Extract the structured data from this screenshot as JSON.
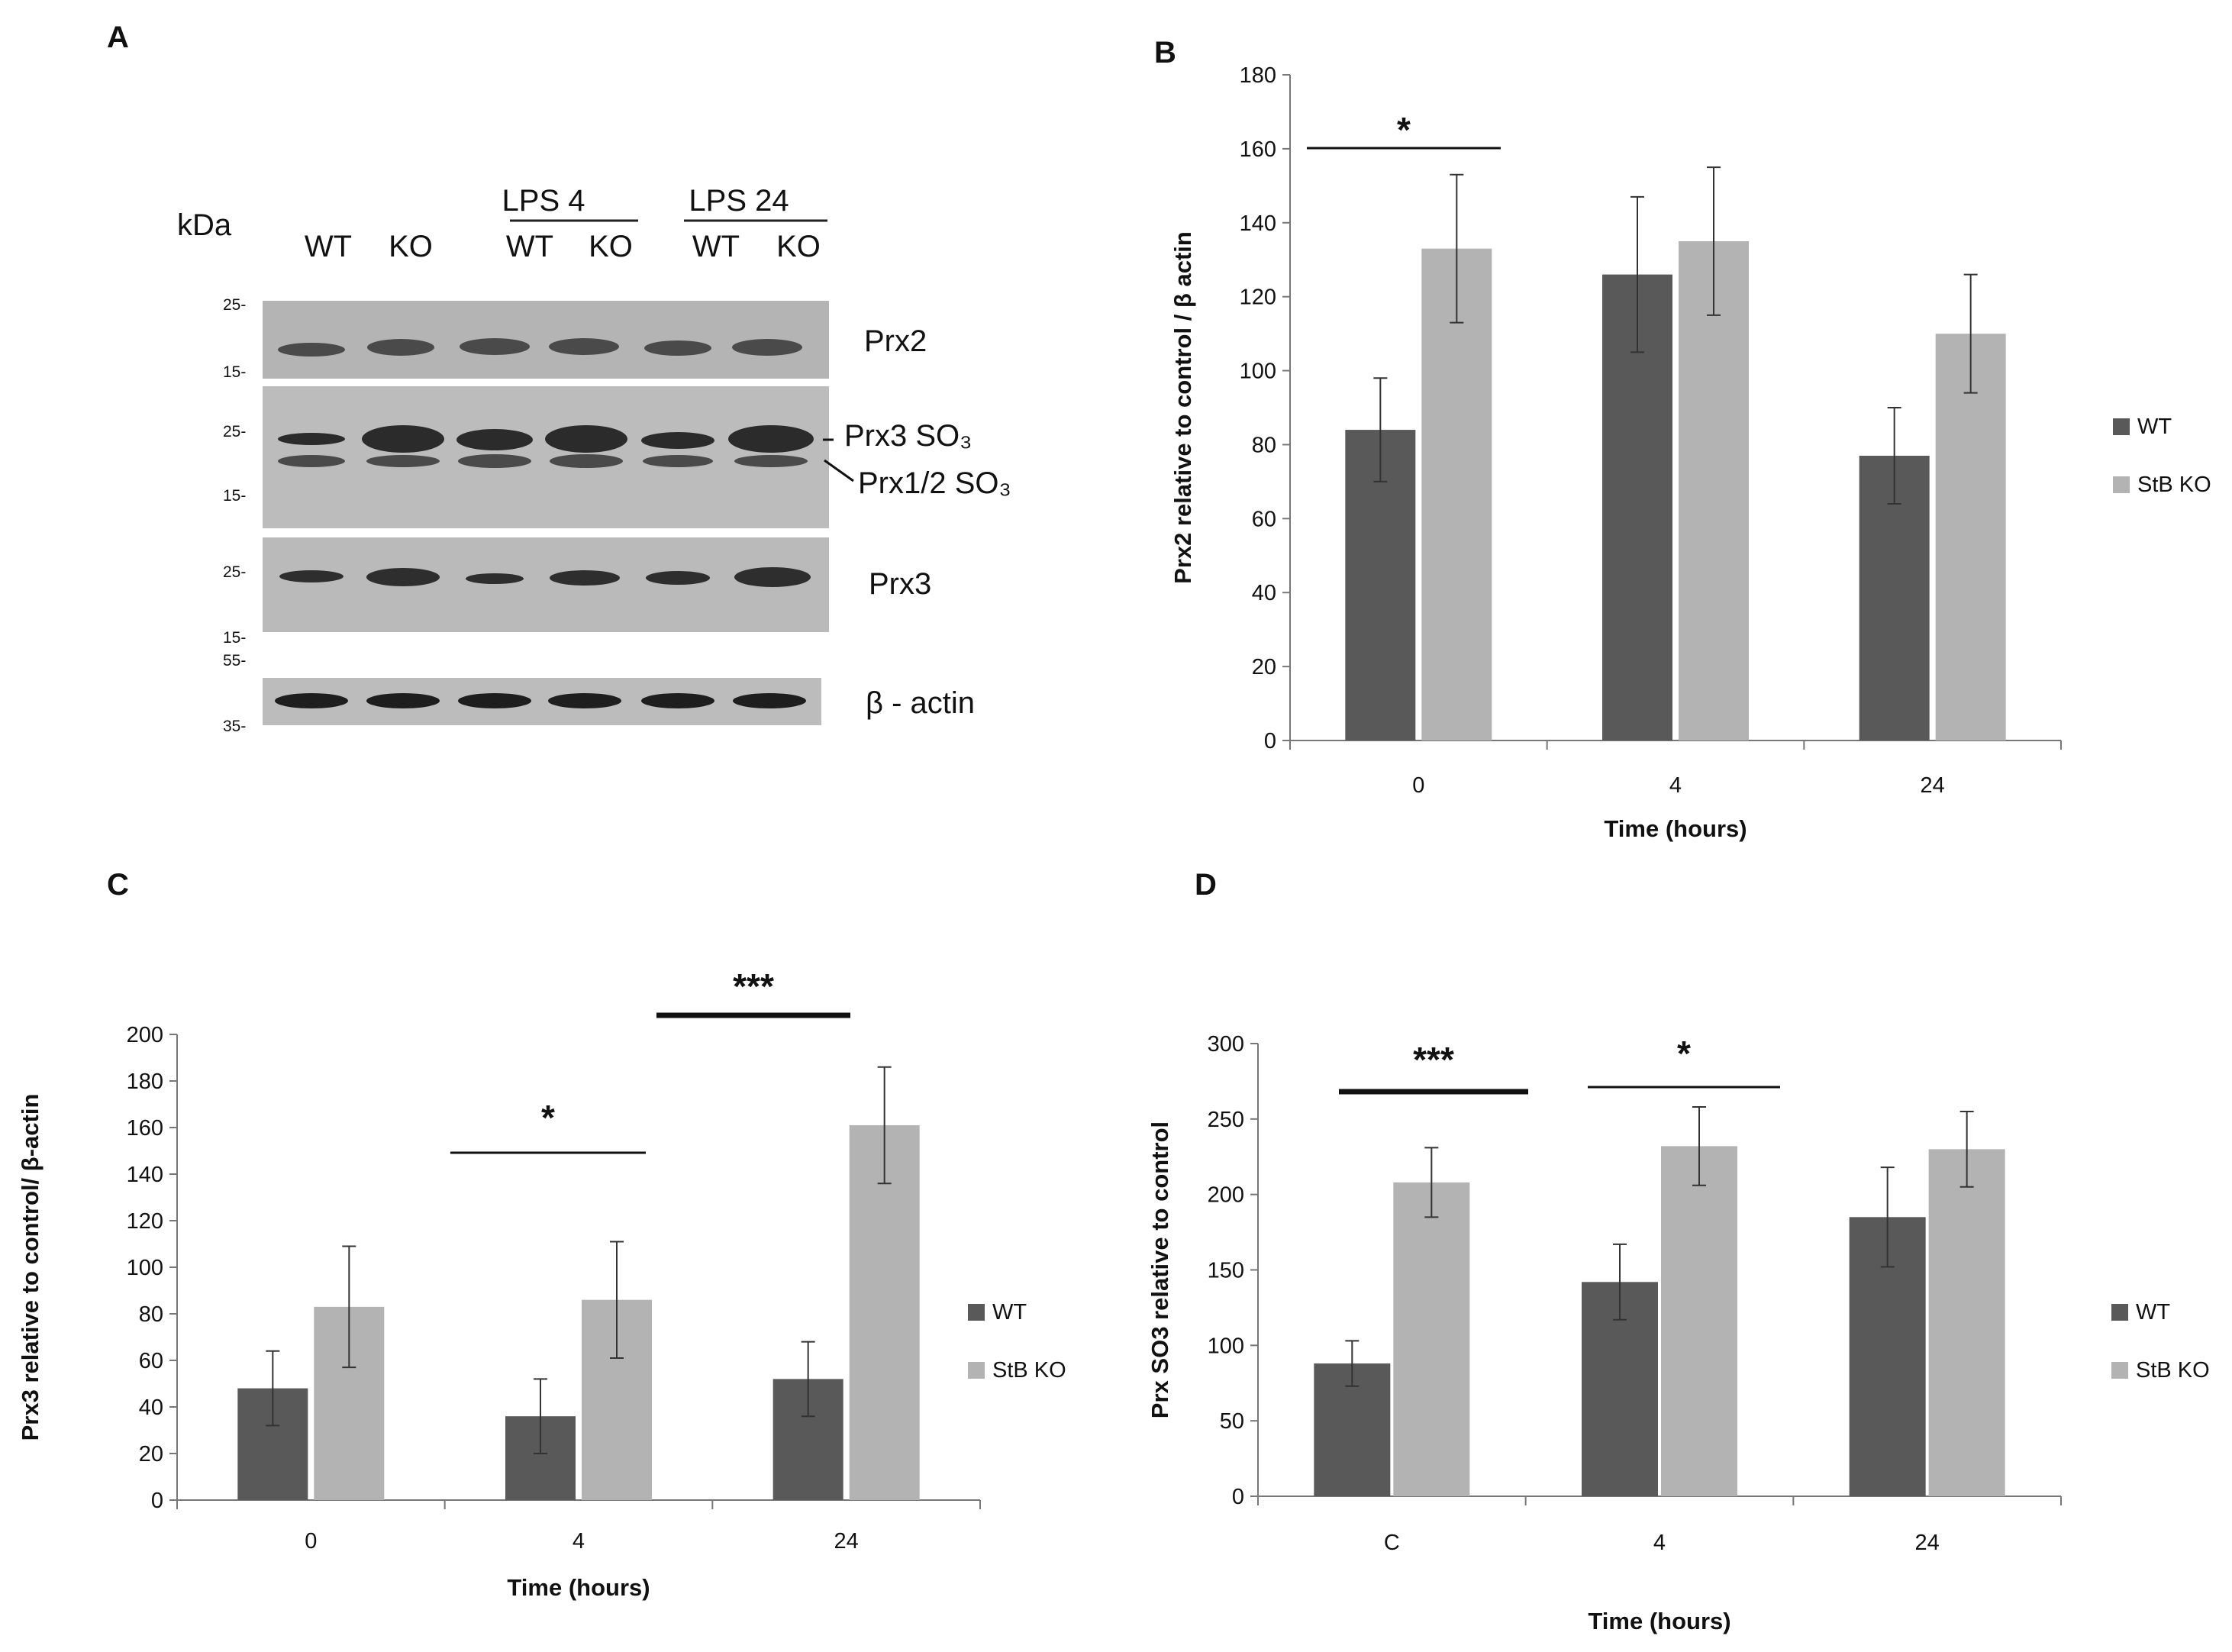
{
  "panels": {
    "A": "A",
    "B": "B",
    "C": "C",
    "D": "D"
  },
  "blot": {
    "kda_label": "kDa",
    "group_labels": [
      "LPS 4",
      "LPS 24"
    ],
    "lane_labels": [
      "WT",
      "KO",
      "WT",
      "KO",
      "WT",
      "KO"
    ],
    "band_labels": [
      "Prx2",
      "Prx3 SO₃",
      "Prx1/2 SO₃",
      "Prx3",
      "β - actin"
    ],
    "markers": {
      "prx2": [
        "25-",
        "15-"
      ],
      "so3": [
        "25-",
        "15-"
      ],
      "prx3": [
        "25-",
        "15-"
      ],
      "actin": [
        "55-",
        "35-"
      ]
    }
  },
  "chart_data": [
    {
      "id": "B",
      "type": "bar",
      "categories": [
        "0",
        "4",
        "24"
      ],
      "series": [
        {
          "name": "WT",
          "color": "#595959",
          "values": [
            84,
            126,
            77
          ],
          "errors": [
            14,
            21,
            13
          ]
        },
        {
          "name": "StB KO",
          "color": "#b3b3b3",
          "values": [
            133,
            135,
            110
          ],
          "errors": [
            20,
            20,
            16
          ]
        }
      ],
      "xlabel": "Time (hours)",
      "ylabel": "Prx2 relative to control  / β actin",
      "ylim": [
        0,
        180
      ],
      "yticks": [
        0,
        20,
        40,
        60,
        80,
        100,
        120,
        140,
        160,
        180
      ],
      "legend": [
        "WT",
        "StB KO"
      ],
      "significance": [
        {
          "label": "*",
          "from_category": 0,
          "to_category": 0
        }
      ]
    },
    {
      "id": "C",
      "type": "bar",
      "categories": [
        "0",
        "4",
        "24"
      ],
      "series": [
        {
          "name": "WT",
          "color": "#595959",
          "values": [
            48,
            36,
            52
          ],
          "errors": [
            16,
            16,
            16
          ]
        },
        {
          "name": "StB KO",
          "color": "#b3b3b3",
          "values": [
            83,
            86,
            161
          ],
          "errors": [
            26,
            25,
            25
          ]
        }
      ],
      "xlabel": "Time (hours)",
      "ylabel": "Prx3 relative to control/ β-actin",
      "ylim": [
        0,
        200
      ],
      "yticks": [
        0,
        20,
        40,
        60,
        80,
        100,
        120,
        140,
        160,
        180,
        200
      ],
      "legend": [
        "WT",
        "StB KO"
      ],
      "significance": [
        {
          "label": "*",
          "from_category": 1,
          "to_category": 1
        },
        {
          "label": "***",
          "from_category": 2,
          "to_category": 2
        }
      ]
    },
    {
      "id": "D",
      "type": "bar",
      "categories": [
        "C",
        "4",
        "24"
      ],
      "series": [
        {
          "name": "WT",
          "color": "#595959",
          "values": [
            88,
            142,
            185
          ],
          "errors": [
            15,
            25,
            33
          ]
        },
        {
          "name": "StB KO",
          "color": "#b3b3b3",
          "values": [
            208,
            232,
            230
          ],
          "errors": [
            23,
            26,
            25
          ]
        }
      ],
      "xlabel": "Time (hours)",
      "ylabel": "Prx SO3 relative to control",
      "ylim": [
        0,
        300
      ],
      "yticks": [
        0,
        50,
        100,
        150,
        200,
        250,
        300
      ],
      "legend": [
        "WT",
        "StB KO"
      ],
      "significance": [
        {
          "label": "***",
          "from_category": 0,
          "to_category": 0
        },
        {
          "label": "*",
          "from_category": 1,
          "to_category": 1
        }
      ]
    }
  ]
}
